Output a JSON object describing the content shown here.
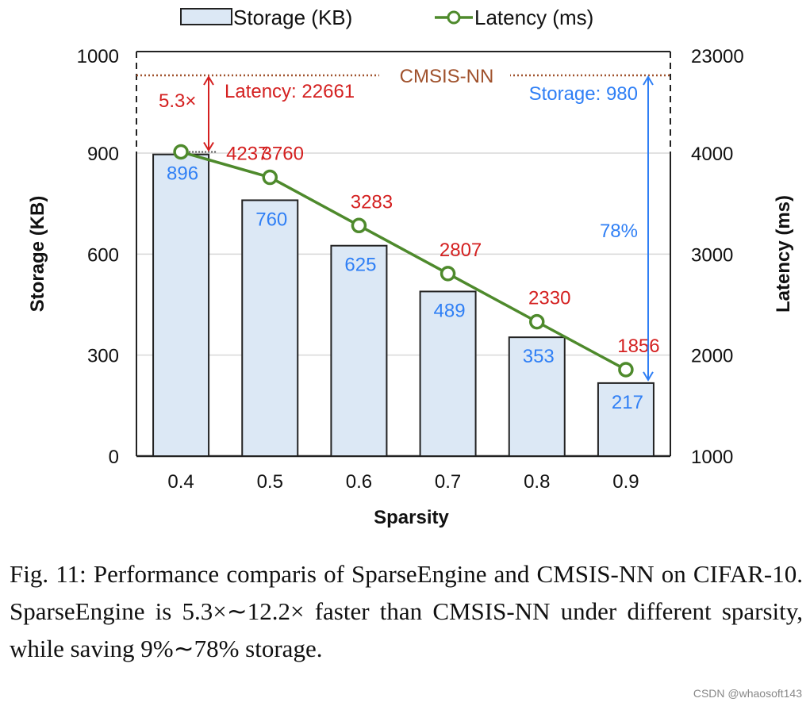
{
  "chart_data": {
    "type": "bar+line",
    "categories": [
      "0.4",
      "0.5",
      "0.6",
      "0.7",
      "0.8",
      "0.9"
    ],
    "xlabel": "Sparsity",
    "ylabel_left": "Storage (KB)",
    "ylabel_right": "Latency (ms)",
    "left_ticks": [
      0,
      300,
      600,
      900,
      1000
    ],
    "right_ticks": [
      1000,
      2000,
      3000,
      4000,
      23000
    ],
    "axis_break": true,
    "grid": true,
    "legend_placement": "top",
    "series": [
      {
        "name": "Storage (KB)",
        "type": "bar",
        "axis": "left",
        "values": [
          896,
          760,
          625,
          489,
          353,
          217
        ],
        "color": "#dce8f5",
        "label_color": "#2f7ff5"
      },
      {
        "name": "Latency (ms)",
        "type": "line",
        "axis": "right",
        "values": [
          4237,
          3760,
          3283,
          2807,
          2330,
          1856
        ],
        "color": "#4e8a2c",
        "label_color": "#d42020"
      }
    ],
    "reference": {
      "label": "CMSIS-NN",
      "latency": 22661,
      "storage": 980,
      "color": "#a0522d"
    },
    "annotations": {
      "speedup": "5.3×",
      "latency_label": "Latency: 22661",
      "storage_label": "Storage: 980",
      "saving": "78%"
    }
  },
  "caption": "Fig. 11: Performance comparis of SparseEngine and CMSIS-NN on CIFAR-10. SparseEngine is 5.3×∼12.2× faster than CMSIS-NN under different sparsity, while saving 9%∼78% storage.",
  "watermark": "CSDN @whaosoft143"
}
